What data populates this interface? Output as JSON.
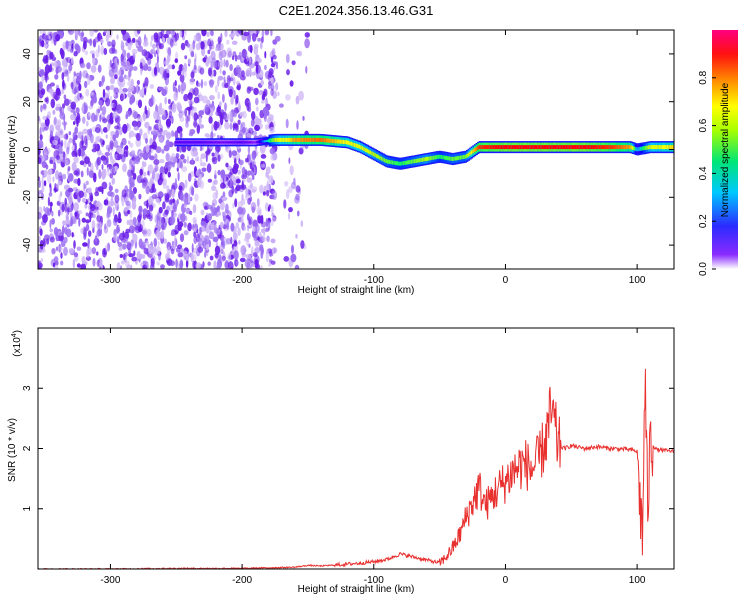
{
  "title": "C2E1.2024.356.13.46.G31",
  "colors": {
    "snr_line": "#e8312f",
    "spectrogram_noise": "#7b3cf0",
    "spectrogram_signal": "#ff2a2a"
  },
  "chart_data": [
    {
      "type": "heatmap",
      "xlabel": "Height of straight line (km)",
      "ylabel": "Frequency (Hz)",
      "xlim": [
        -355,
        128
      ],
      "ylim": [
        -50,
        50
      ],
      "x_ticks": [
        -300,
        -200,
        -100,
        0,
        100
      ],
      "y_ticks": [
        -40,
        -20,
        0,
        20,
        40
      ],
      "colorbar": {
        "label": "Normalized spectral amplitude",
        "range": [
          0,
          1
        ],
        "ticks": [
          0.0,
          0.2,
          0.4,
          0.6,
          0.8
        ],
        "tick_labels": [
          "0.0",
          "0.2",
          "0.4",
          "0.6",
          "0.8"
        ],
        "colormap": [
          "#ffffff",
          "#7b00ff",
          "#0000ff",
          "#00c8ff",
          "#00ff64",
          "#c8ff00",
          "#ffff00",
          "#ff8000",
          "#ff0000",
          "#ff0080"
        ]
      },
      "ridge": {
        "x": [
          -250,
          -230,
          -215,
          -200,
          -190,
          -175,
          -160,
          -140,
          -120,
          -110,
          -100,
          -90,
          -80,
          -70,
          -60,
          -50,
          -40,
          -30,
          -20,
          0,
          20,
          40,
          60,
          80,
          95,
          100,
          110,
          128
        ],
        "freq": [
          3,
          3,
          3,
          3,
          3,
          4,
          4,
          4,
          3,
          1,
          -2,
          -5,
          -6,
          -5,
          -4,
          -3,
          -4,
          -3,
          1,
          1,
          1,
          1,
          1,
          1,
          1,
          0,
          1,
          1
        ],
        "amplitude": [
          0.15,
          0.15,
          0.12,
          0.15,
          0.1,
          0.55,
          0.75,
          0.8,
          0.65,
          0.6,
          0.55,
          0.5,
          0.45,
          0.5,
          0.55,
          0.45,
          0.5,
          0.5,
          0.85,
          0.9,
          0.9,
          0.9,
          0.9,
          0.85,
          0.75,
          0.3,
          0.6,
          0.7
        ]
      }
    },
    {
      "type": "line",
      "xlabel": "Height of straight line (km)",
      "ylabel": "SNR (10 * v/v)",
      "y_scale_label": "(x10",
      "y_scale_exp": "4",
      "y_scale_close": ")",
      "xlim": [
        -355,
        128
      ],
      "ylim": [
        0,
        4
      ],
      "x_ticks": [
        -300,
        -200,
        -100,
        0,
        100
      ],
      "y_ticks": [
        1,
        2,
        3
      ],
      "series": [
        {
          "x": [
            -355,
            -300,
            -250,
            -200,
            -180,
            -160,
            -150,
            -140,
            -120,
            -100,
            -90,
            -80,
            -70,
            -60,
            -50,
            -45,
            -40,
            -35,
            -30,
            -25,
            -20,
            -15,
            -10,
            -5,
            0,
            5,
            10,
            15,
            20,
            25,
            30,
            35,
            40,
            45,
            50,
            60,
            70,
            80,
            90,
            95,
            100,
            102,
            104,
            106,
            108,
            110,
            115,
            120,
            128
          ],
          "y": [
            0.0,
            0.0,
            0.01,
            0.01,
            0.02,
            0.03,
            0.06,
            0.05,
            0.08,
            0.12,
            0.16,
            0.25,
            0.2,
            0.15,
            0.1,
            0.2,
            0.35,
            0.55,
            0.85,
            1.1,
            1.35,
            1.05,
            1.2,
            1.35,
            1.45,
            1.6,
            1.7,
            1.75,
            1.65,
            1.8,
            2.1,
            2.6,
            2.05,
            2.0,
            2.05,
            2.0,
            2.03,
            2.0,
            1.99,
            1.98,
            1.95,
            1.2,
            0.5,
            3.2,
            1.0,
            2.1,
            1.98,
            1.97,
            1.95
          ]
        }
      ]
    }
  ]
}
